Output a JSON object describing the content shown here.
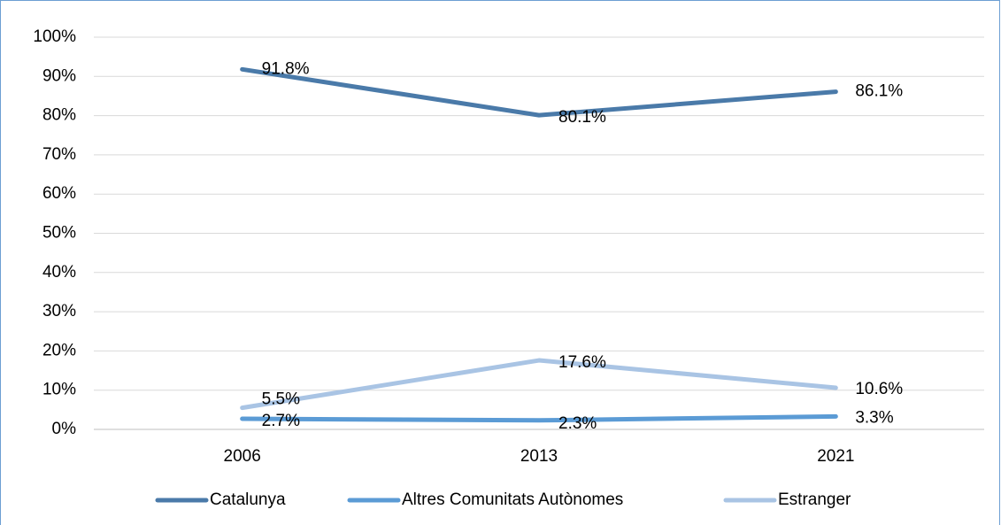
{
  "chart_data": {
    "type": "line",
    "categories": [
      "2006",
      "2013",
      "2021"
    ],
    "series": [
      {
        "name": "Catalunya",
        "color": "#4a7aa9",
        "values": [
          91.8,
          80.1,
          86.1
        ],
        "value_labels": [
          "91.8%",
          "80.1%",
          "86.1%"
        ]
      },
      {
        "name": "Altres Comunitats Autònomes",
        "color": "#5b9bd5",
        "values": [
          2.7,
          2.3,
          3.3
        ],
        "value_labels": [
          "2.7%",
          "2.3%",
          "3.3%"
        ]
      },
      {
        "name": "Estranger",
        "color": "#a9c4e4",
        "values": [
          5.5,
          17.6,
          10.6
        ],
        "value_labels": [
          "5.5%",
          "17.6%",
          "10.6%"
        ]
      }
    ],
    "ylim": [
      0,
      100
    ],
    "yticks": [
      {
        "value": 0,
        "label": "0%"
      },
      {
        "value": 10,
        "label": "10%"
      },
      {
        "value": 20,
        "label": "20%"
      },
      {
        "value": 30,
        "label": "30%"
      },
      {
        "value": 40,
        "label": "40%"
      },
      {
        "value": 50,
        "label": "50%"
      },
      {
        "value": 60,
        "label": "60%"
      },
      {
        "value": 70,
        "label": "70%"
      },
      {
        "value": 80,
        "label": "80%"
      },
      {
        "value": 90,
        "label": "90%"
      },
      {
        "value": 100,
        "label": "100%"
      }
    ],
    "grid": true,
    "legend": "bottom"
  }
}
